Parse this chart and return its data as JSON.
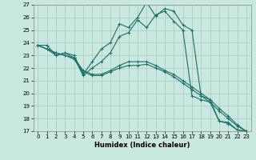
{
  "xlabel": "Humidex (Indice chaleur)",
  "background_color": "#c8e8e0",
  "grid_color": "#a8c8c0",
  "line_color": "#1a7068",
  "xlim": [
    -0.5,
    23.5
  ],
  "ylim": [
    17,
    27
  ],
  "xticks": [
    0,
    1,
    2,
    3,
    4,
    5,
    6,
    7,
    8,
    9,
    10,
    11,
    12,
    13,
    14,
    15,
    16,
    17,
    18,
    19,
    20,
    21,
    22,
    23
  ],
  "yticks": [
    17,
    18,
    19,
    20,
    21,
    22,
    23,
    24,
    25,
    26,
    27
  ],
  "series": [
    {
      "x": [
        0,
        1,
        2,
        3,
        4,
        5,
        6,
        7,
        8,
        9,
        10,
        11,
        12,
        13,
        14,
        15,
        16,
        17,
        18,
        19,
        20,
        21,
        22,
        23
      ],
      "y": [
        23.8,
        23.8,
        23.0,
        23.2,
        23.0,
        21.5,
        22.5,
        23.5,
        24.0,
        25.5,
        25.2,
        26.0,
        27.2,
        26.1,
        26.7,
        26.5,
        25.4,
        25.0,
        19.8,
        19.5,
        17.8,
        17.7,
        17.1,
        17.0
      ]
    },
    {
      "x": [
        0,
        1,
        2,
        3,
        4,
        5,
        6,
        7,
        8,
        9,
        10,
        11,
        12,
        13,
        14,
        15,
        16,
        17,
        18,
        19,
        20,
        21,
        22,
        23
      ],
      "y": [
        23.8,
        23.5,
        23.0,
        23.2,
        22.8,
        21.4,
        22.0,
        22.5,
        23.2,
        24.5,
        24.8,
        25.8,
        25.2,
        26.2,
        26.5,
        25.7,
        25.0,
        19.8,
        19.5,
        19.3,
        17.8,
        17.6,
        17.1,
        17.0
      ]
    },
    {
      "x": [
        0,
        1,
        2,
        3,
        4,
        5,
        6,
        7,
        8,
        9,
        10,
        11,
        12,
        13,
        14,
        15,
        16,
        17,
        18,
        19,
        20,
        21,
        22,
        23
      ],
      "y": [
        23.8,
        23.5,
        23.2,
        23.0,
        22.8,
        21.8,
        21.5,
        21.5,
        21.8,
        22.2,
        22.5,
        22.5,
        22.5,
        22.2,
        21.8,
        21.5,
        21.0,
        20.5,
        20.0,
        19.5,
        18.8,
        18.2,
        17.5,
        17.0
      ]
    },
    {
      "x": [
        0,
        1,
        2,
        3,
        4,
        5,
        6,
        7,
        8,
        9,
        10,
        11,
        12,
        13,
        14,
        15,
        16,
        17,
        18,
        19,
        20,
        21,
        22,
        23
      ],
      "y": [
        23.8,
        23.5,
        23.2,
        23.0,
        22.7,
        21.7,
        21.4,
        21.4,
        21.7,
        22.0,
        22.2,
        22.2,
        22.3,
        22.0,
        21.7,
        21.3,
        20.8,
        20.3,
        19.8,
        19.3,
        18.6,
        18.0,
        17.4,
        17.0
      ]
    }
  ]
}
